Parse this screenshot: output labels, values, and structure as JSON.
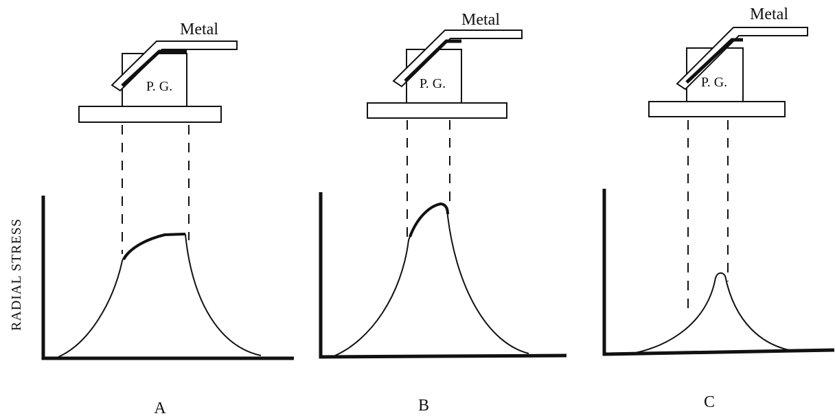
{
  "y_axis_label": "RADIAL STRESS",
  "panels": [
    {
      "label": "A",
      "metal": "Metal",
      "block": "P. G."
    },
    {
      "label": "B",
      "metal": "Metal",
      "block": "P. G."
    },
    {
      "label": "C",
      "metal": "Metal",
      "block": "P. G."
    }
  ]
}
